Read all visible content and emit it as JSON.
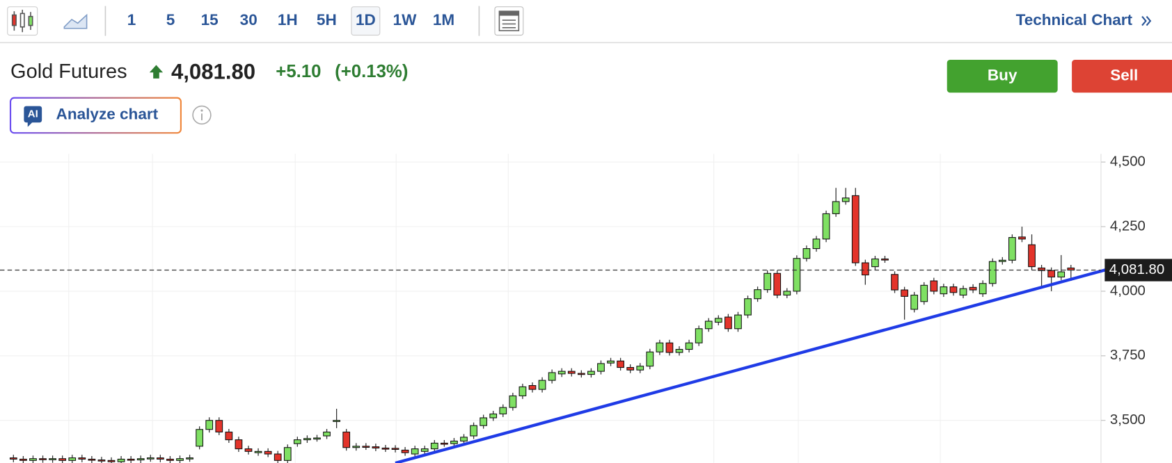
{
  "toolbar": {
    "intervals": [
      "1",
      "5",
      "15",
      "30",
      "1H",
      "5H",
      "1D",
      "1W",
      "1M"
    ],
    "selected": 6,
    "link": "Technical Chart"
  },
  "quote": {
    "name": "Gold Futures",
    "price": "4,081.80",
    "change": "+5.10",
    "change_percent": "(+0.13%)"
  },
  "actions": {
    "buy": "Buy",
    "sell": "Sell"
  },
  "ai_button": {
    "badge": "AI",
    "label": "Analyze chart"
  },
  "chart_data": {
    "type": "candlestick",
    "ylim": [
      3335,
      4530
    ],
    "yticks": [
      {
        "value": 3500,
        "label": "3,500"
      },
      {
        "value": 3750,
        "label": "3,750"
      },
      {
        "value": 4000,
        "label": "4,000"
      },
      {
        "value": 4250,
        "label": "4,250"
      },
      {
        "value": 4500,
        "label": "4,500"
      }
    ],
    "grid": true,
    "up_color": "#7fe063",
    "down_color": "#e3342b",
    "series": [
      {
        "open": [
          3355,
          3350,
          3345,
          3352,
          3348,
          3352,
          3345,
          3355,
          3350,
          3347,
          3345,
          3340,
          3350,
          3347,
          3352,
          3355,
          3350,
          3345,
          3352,
          3400,
          3465,
          3500,
          3455,
          3425,
          3390,
          3375,
          3380,
          3370,
          3345,
          3410,
          3425,
          3430,
          3440,
          3497,
          3455,
          3395,
          3400,
          3398,
          3393,
          3392,
          3385,
          3370,
          3380,
          3390,
          3412,
          3410,
          3420,
          3440,
          3480,
          3510,
          3525,
          3550,
          3595,
          3635,
          3620,
          3655,
          3680,
          3690,
          3682,
          3678,
          3690,
          3722,
          3730,
          3705,
          3695,
          3710,
          3765,
          3800,
          3763,
          3775,
          3800,
          3855,
          3880,
          3900,
          3855,
          3908,
          3971,
          4006,
          4069,
          3985,
          4000,
          4127,
          4165,
          4202,
          4300,
          4347,
          4370,
          4110,
          4095,
          4125,
          4065,
          4005,
          3930,
          3960,
          4040,
          3990,
          4017,
          3985,
          4015,
          3990,
          4030,
          4115,
          4120,
          4210,
          4180,
          4090,
          4080,
          4055,
          4090
        ],
        "high": [
          3367,
          3362,
          3364,
          3364,
          3364,
          3364,
          3367,
          3367,
          3362,
          3359,
          3357,
          3362,
          3362,
          3364,
          3367,
          3367,
          3362,
          3364,
          3367,
          3477,
          3512,
          3512,
          3467,
          3437,
          3402,
          3392,
          3392,
          3382,
          3407,
          3437,
          3442,
          3444,
          3467,
          3545,
          3467,
          3412,
          3412,
          3410,
          3405,
          3404,
          3397,
          3402,
          3402,
          3424,
          3424,
          3432,
          3447,
          3492,
          3522,
          3537,
          3562,
          3607,
          3642,
          3647,
          3667,
          3697,
          3702,
          3702,
          3694,
          3702,
          3732,
          3742,
          3742,
          3717,
          3722,
          3777,
          3812,
          3812,
          3787,
          3812,
          3867,
          3896,
          3907,
          3912,
          3920,
          3983,
          4018,
          4081,
          4081,
          4012,
          4139,
          4177,
          4214,
          4312,
          4400,
          4400,
          4400,
          4122,
          4137,
          4137,
          4077,
          4017,
          3997,
          4035,
          4052,
          4029,
          4029,
          4022,
          4027,
          4042,
          4127,
          4132,
          4220,
          4250,
          4220,
          4102,
          4092,
          4140,
          4102
        ],
        "low": [
          3338,
          3333,
          3333,
          3336,
          3336,
          3333,
          3333,
          3338,
          3335,
          3333,
          3328,
          3328,
          3335,
          3335,
          3340,
          3338,
          3333,
          3333,
          3340,
          3388,
          3453,
          3443,
          3413,
          3378,
          3368,
          3363,
          3358,
          3333,
          3333,
          3398,
          3413,
          3418,
          3428,
          3470,
          3383,
          3383,
          3386,
          3381,
          3378,
          3376,
          3363,
          3358,
          3368,
          3378,
          3398,
          3398,
          3408,
          3428,
          3468,
          3498,
          3513,
          3538,
          3583,
          3608,
          3608,
          3643,
          3668,
          3670,
          3666,
          3666,
          3678,
          3710,
          3693,
          3683,
          3683,
          3698,
          3753,
          3751,
          3751,
          3763,
          3788,
          3843,
          3868,
          3843,
          3843,
          3896,
          3959,
          3994,
          3973,
          3973,
          3988,
          4115,
          4153,
          4190,
          4288,
          4335,
          4098,
          4025,
          4083,
          4110,
          3993,
          3890,
          3918,
          3948,
          3988,
          3978,
          3983,
          3973,
          3993,
          3978,
          4018,
          4103,
          4108,
          4190,
          4083,
          4020,
          4000,
          4043,
          4040
        ],
        "close": [
          3350,
          3345,
          3352,
          3348,
          3352,
          3345,
          3355,
          3350,
          3347,
          3345,
          3340,
          3350,
          3347,
          3352,
          3355,
          3350,
          3345,
          3352,
          3355,
          3465,
          3500,
          3455,
          3425,
          3390,
          3380,
          3380,
          3370,
          3345,
          3395,
          3425,
          3430,
          3432,
          3455,
          3500,
          3395,
          3400,
          3398,
          3393,
          3390,
          3388,
          3375,
          3390,
          3390,
          3412,
          3410,
          3420,
          3435,
          3480,
          3510,
          3525,
          3550,
          3595,
          3630,
          3620,
          3655,
          3685,
          3690,
          3682,
          3678,
          3690,
          3720,
          3730,
          3705,
          3695,
          3710,
          3765,
          3800,
          3763,
          3775,
          3800,
          3855,
          3884,
          3895,
          3855,
          3908,
          3971,
          4006,
          4069,
          3985,
          4000,
          4127,
          4165,
          4202,
          4300,
          4347,
          4361,
          4110,
          4063,
          4125,
          4122,
          4005,
          3980,
          3985,
          4023,
          4000,
          4017,
          3995,
          4010,
          4005,
          4030,
          4115,
          4120,
          4208,
          4202,
          4095,
          4080,
          4055,
          4075,
          4081.8
        ]
      }
    ],
    "trendline": {
      "color": "#1f3be6",
      "x": [
        39,
        114
      ],
      "values": [
        3335,
        4108
      ]
    },
    "last_price": {
      "value": 4081.8,
      "label": "4,081.80"
    }
  }
}
